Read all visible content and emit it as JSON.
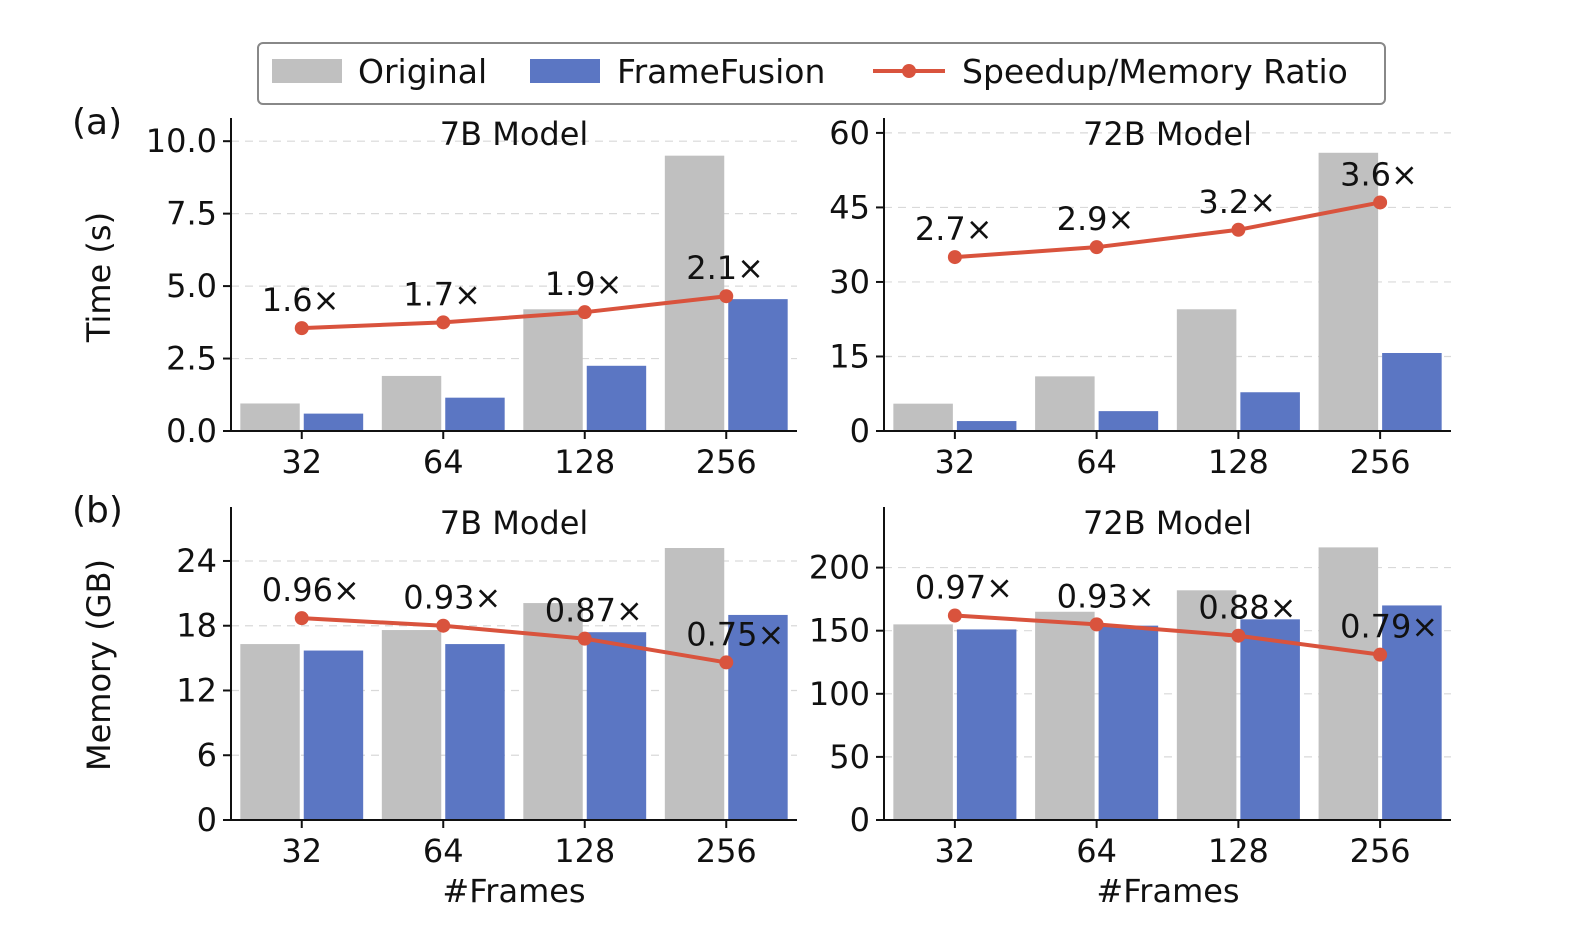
{
  "legend": {
    "original": "Original",
    "framefusion": "FrameFusion",
    "ratio": "Speedup/Memory Ratio"
  },
  "colors": {
    "original": "#c0c0c0",
    "framefusion": "#5b76c3",
    "ratio": "#d9533d"
  },
  "rows": {
    "a": {
      "letter": "(a)",
      "ylabel": "Time (s)"
    },
    "b": {
      "letter": "(b)",
      "ylabel": "Memory (GB)"
    }
  },
  "xlabel": "#Frames",
  "chart_data": [
    {
      "id": "a-7b",
      "type": "bar",
      "title": "7B Model",
      "xlabel": "",
      "ylabel": "Time (s)",
      "categories": [
        "32",
        "64",
        "128",
        "256"
      ],
      "ylim": [
        0,
        10.8
      ],
      "yticks": [
        0.0,
        2.5,
        5.0,
        7.5,
        10.0
      ],
      "ytick_labels": [
        "0.0",
        "2.5",
        "5.0",
        "7.5",
        "10.0"
      ],
      "series": [
        {
          "name": "Original",
          "values": [
            0.95,
            1.9,
            4.2,
            9.5
          ]
        },
        {
          "name": "FrameFusion",
          "values": [
            0.6,
            1.15,
            2.25,
            4.55
          ]
        }
      ],
      "ratio_line": {
        "name": "Speedup/Memory Ratio",
        "y": [
          3.55,
          3.75,
          4.1,
          4.65
        ],
        "labels": [
          "1.6×",
          "1.7×",
          "1.9×",
          "2.1×"
        ]
      }
    },
    {
      "id": "a-72b",
      "type": "bar",
      "title": "72B Model",
      "xlabel": "",
      "ylabel": "",
      "categories": [
        "32",
        "64",
        "128",
        "256"
      ],
      "ylim": [
        0,
        63
      ],
      "yticks": [
        0,
        15,
        30,
        45,
        60
      ],
      "ytick_labels": [
        "0",
        "15",
        "30",
        "45",
        "60"
      ],
      "series": [
        {
          "name": "Original",
          "values": [
            5.5,
            11,
            24.5,
            56
          ]
        },
        {
          "name": "FrameFusion",
          "values": [
            2,
            4,
            7.8,
            15.7
          ]
        }
      ],
      "ratio_line": {
        "name": "Speedup/Memory Ratio",
        "y": [
          35,
          37,
          40.5,
          46
        ],
        "labels": [
          "2.7×",
          "2.9×",
          "3.2×",
          "3.6×"
        ]
      }
    },
    {
      "id": "b-7b",
      "type": "bar",
      "title": "7B Model",
      "xlabel": "#Frames",
      "ylabel": "Memory (GB)",
      "categories": [
        "32",
        "64",
        "128",
        "256"
      ],
      "ylim": [
        0,
        29
      ],
      "yticks": [
        0,
        6,
        12,
        18,
        24
      ],
      "ytick_labels": [
        "0",
        "6",
        "12",
        "18",
        "24"
      ],
      "series": [
        {
          "name": "Original",
          "values": [
            16.3,
            17.6,
            20.1,
            25.2
          ]
        },
        {
          "name": "FrameFusion",
          "values": [
            15.7,
            16.3,
            17.4,
            19
          ]
        }
      ],
      "ratio_line": {
        "name": "Speedup/Memory Ratio",
        "y": [
          18.7,
          18,
          16.8,
          14.6
        ],
        "labels": [
          "0.96×",
          "0.93×",
          "0.87×",
          "0.75×"
        ]
      }
    },
    {
      "id": "b-72b",
      "type": "bar",
      "title": "72B Model",
      "xlabel": "#Frames",
      "ylabel": "",
      "categories": [
        "32",
        "64",
        "128",
        "256"
      ],
      "ylim": [
        0,
        248
      ],
      "yticks": [
        0,
        50,
        100,
        150,
        200
      ],
      "ytick_labels": [
        "0",
        "50",
        "100",
        "150",
        "200"
      ],
      "series": [
        {
          "name": "Original",
          "values": [
            155,
            165,
            182,
            216
          ]
        },
        {
          "name": "FrameFusion",
          "values": [
            151,
            154,
            159,
            170
          ]
        }
      ],
      "ratio_line": {
        "name": "Speedup/Memory Ratio",
        "y": [
          162,
          155,
          146,
          131
        ],
        "labels": [
          "0.97×",
          "0.93×",
          "0.88×",
          "0.79×"
        ]
      }
    }
  ]
}
